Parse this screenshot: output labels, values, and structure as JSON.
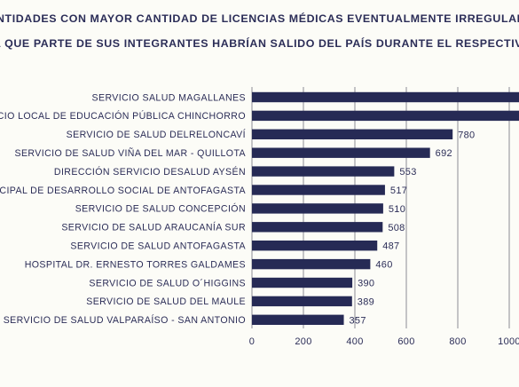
{
  "chart_data": {
    "type": "bar",
    "orientation": "horizontal",
    "title_lines": [
      "NTIDADES CON MAYOR CANTIDAD DE LICENCIAS MÉDICAS EVENTUALMENTE IRREGULARES",
      "A QUE PARTE DE SUS INTEGRANTES HABRÍAN SALIDO DEL PAÍS DURANTE EL RESPECTIVO"
    ],
    "categories": [
      "SERVICIO SALUD MAGALLANES",
      "CIO LOCAL DE EDUCACIÓN PÚBLICA CHINCHORRO",
      "SERVICIO DE SALUD DELRELONCAVÍ",
      "SERVICIO DE SALUD VIÑA DEL MAR - QUILLOTA",
      "DIRECCIÓN SERVICIO DESALUD AYSÉN",
      "ICIPAL DE DESARROLLO SOCIAL DE ANTOFAGASTA",
      "SERVICIO DE SALUD CONCEPCIÓN",
      "SERVICIO DE SALUD ARAUCANÍA SUR",
      "SERVICIO DE SALUD ANTOFAGASTA",
      "HOSPITAL DR. ERNESTO TORRES GALDAMES",
      "SERVICIO DE SALUD O´HIGGINS",
      "SERVICIO DE SALUD DEL  MAULE",
      "SERVICIO DE SALUD VALPARAÍSO - SAN ANTONIO"
    ],
    "values": [
      1040,
      1040,
      780,
      692,
      553,
      517,
      510,
      508,
      487,
      460,
      390,
      389,
      357
    ],
    "value_labels": [
      "",
      "",
      "780",
      "692",
      "553",
      "517",
      "510",
      "508",
      "487",
      "460",
      "390",
      "389",
      "357"
    ],
    "x_ticks": [
      "0",
      "200",
      "400",
      "600",
      "800",
      "1000"
    ],
    "xlim": [
      0,
      1000
    ],
    "grid": true,
    "colors": {
      "bar": "#262a55",
      "text": "#2b2d57",
      "grid": "#8c8c96",
      "background": "#fcfcf7"
    }
  }
}
